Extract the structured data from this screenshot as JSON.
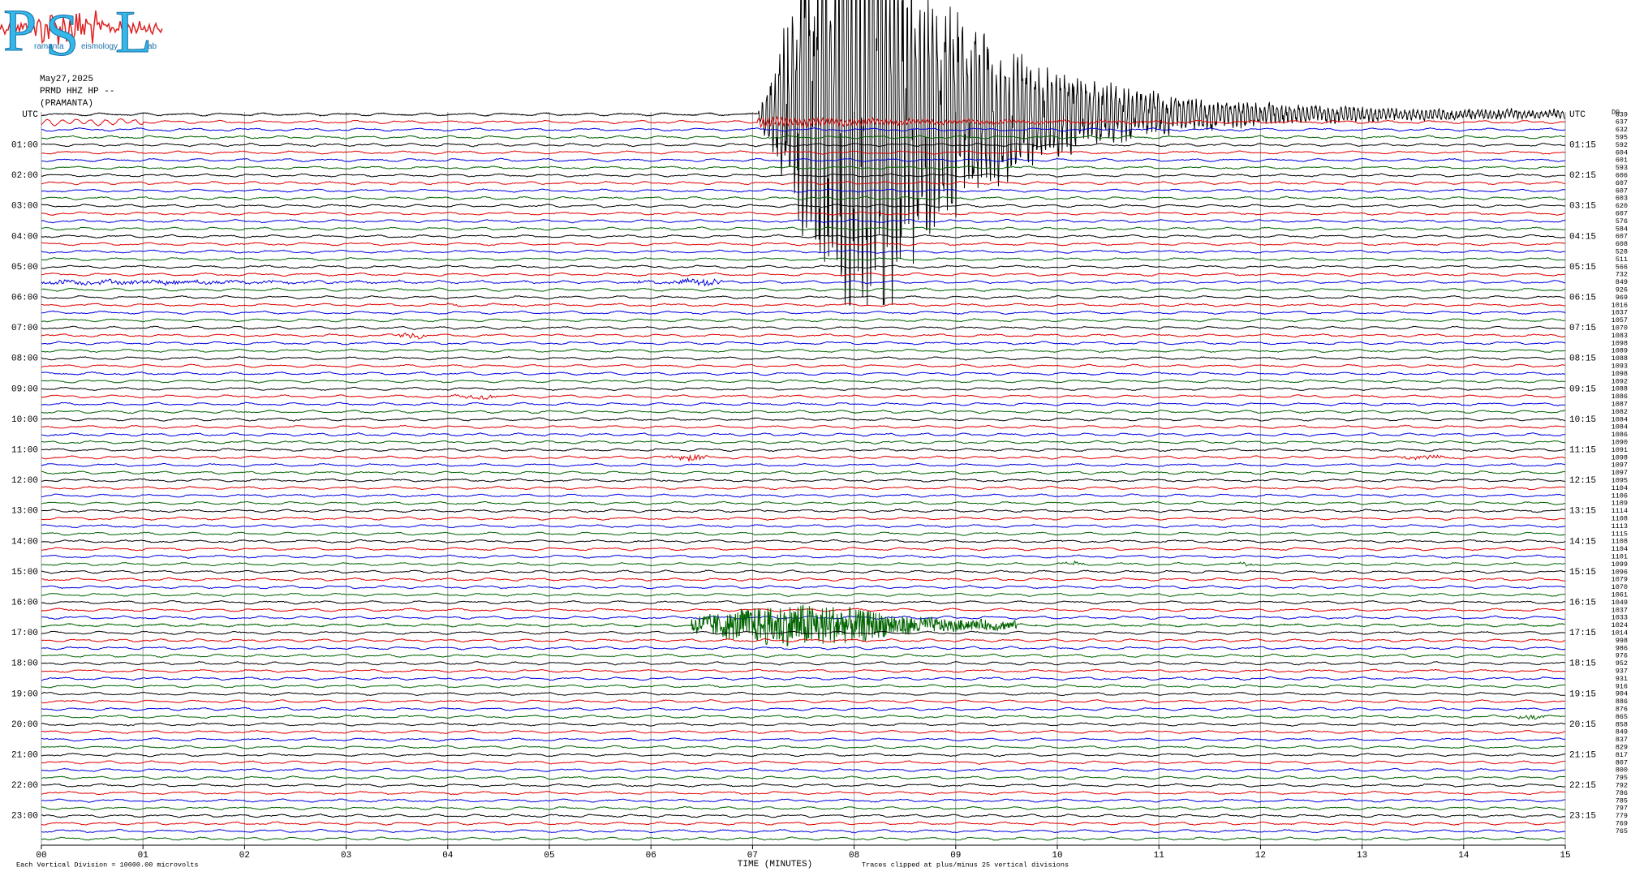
{
  "header": {
    "logo": {
      "letters": [
        "P",
        "S",
        "L"
      ],
      "small": [
        "ramanta",
        "eismology",
        "ab"
      ]
    },
    "date": "May27,2025",
    "station": "PRMD HHZ HP --",
    "name": "(PRAMANTA)"
  },
  "left_labels": [
    "UTC",
    "01:00",
    "02:00",
    "03:00",
    "04:00",
    "05:00",
    "06:00",
    "07:00",
    "08:00",
    "09:00",
    "10:00",
    "11:00",
    "12:00",
    "13:00",
    "14:00",
    "15:00",
    "16:00",
    "17:00",
    "18:00",
    "19:00",
    "20:00",
    "21:00",
    "22:00",
    "23:00"
  ],
  "right_labels": [
    "UTC",
    "01:15",
    "02:15",
    "03:15",
    "04:15",
    "05:15",
    "06:15",
    "07:15",
    "08:15",
    "09:15",
    "10:15",
    "11:15",
    "12:15",
    "13:15",
    "14:15",
    "15:15",
    "16:15",
    "17:15",
    "18:15",
    "19:15",
    "20:15",
    "21:15",
    "22:15",
    "23:15"
  ],
  "corner": "DG",
  "scale_values": [
    "639",
    "637",
    "632",
    "595",
    "592",
    "604",
    "601",
    "593",
    "606",
    "607",
    "607",
    "603",
    "620",
    "607",
    "576",
    "584",
    "607",
    "608",
    "528",
    "511",
    "566",
    "732",
    "849",
    "926",
    "969",
    "1016",
    "1037",
    "1057",
    "1070",
    "1083",
    "1098",
    "1089",
    "1088",
    "1093",
    "1098",
    "1092",
    "1088",
    "1086",
    "1087",
    "1082",
    "1084",
    "1084",
    "1086",
    "1090",
    "1091",
    "1098",
    "1097",
    "1097",
    "1095",
    "1104",
    "1106",
    "1109",
    "1114",
    "1108",
    "1113",
    "1115",
    "1108",
    "1104",
    "1101",
    "1099",
    "1096",
    "1079",
    "1070",
    "1061",
    "1049",
    "1037",
    "1033",
    "1024",
    "1014",
    "998",
    "986",
    "976",
    "952",
    "937",
    "931",
    "916",
    "904",
    "886",
    "876",
    "865",
    "858",
    "849",
    "837",
    "829",
    "817",
    "807",
    "800",
    "795",
    "792",
    "786",
    "785",
    "797",
    "779",
    "769",
    "765"
  ],
  "x_axis": {
    "ticks": [
      "00",
      "01",
      "02",
      "03",
      "04",
      "05",
      "06",
      "07",
      "08",
      "09",
      "10",
      "11",
      "12",
      "13",
      "14",
      "15"
    ],
    "title": "TIME (MINUTES)"
  },
  "footer": {
    "division": "Each Vertical Division = 10000.00 microvolts",
    "clip": "Traces clipped at plus/minus 25 vertical divisions"
  }
}
